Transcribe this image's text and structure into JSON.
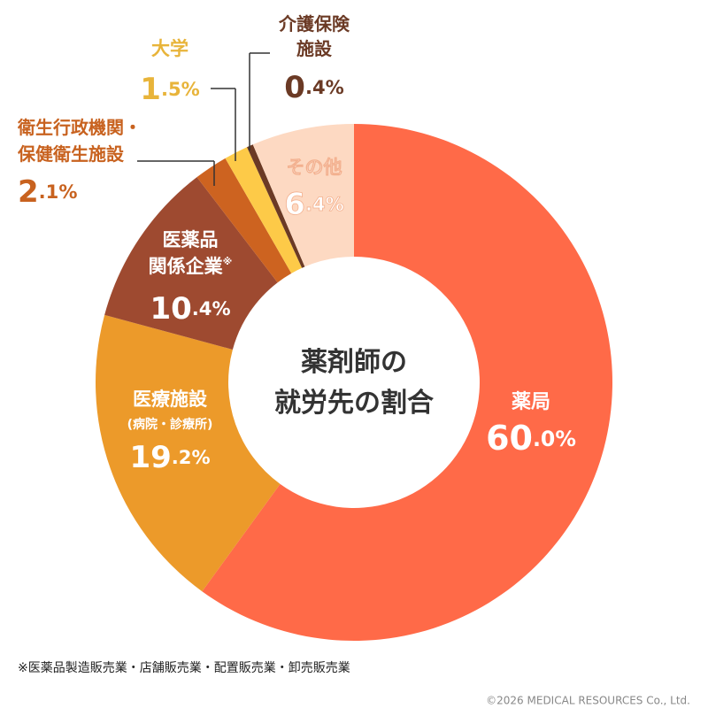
{
  "chart_data": {
    "type": "donut",
    "title": "薬剤師の\n就労先の割合",
    "categories": [
      "薬局",
      "医療施設\n(病院・診療所)",
      "医薬品\n関係企業※",
      "衛生行政機関・\n保健衛生施設",
      "大学",
      "介護保険\n施設",
      "その他"
    ],
    "values": [
      60.0,
      19.2,
      10.4,
      2.1,
      1.5,
      0.4,
      6.4
    ],
    "value_labels": [
      "60.0%",
      "19.2%",
      "10.4%",
      "2.1%",
      "1.5%",
      "0.4%",
      "6.4%"
    ],
    "colors": [
      "#ff6a48",
      "#ec9a2a",
      "#9e4a30",
      "#cd6320",
      "#fdca48",
      "#6b3a25",
      "#fdd9c2"
    ],
    "footnote": "※医薬品製造販売業・店舗販売業・配置販売業・卸売販売業",
    "copyright": "©2026 MEDICAL RESOURCES Co., Ltd."
  }
}
